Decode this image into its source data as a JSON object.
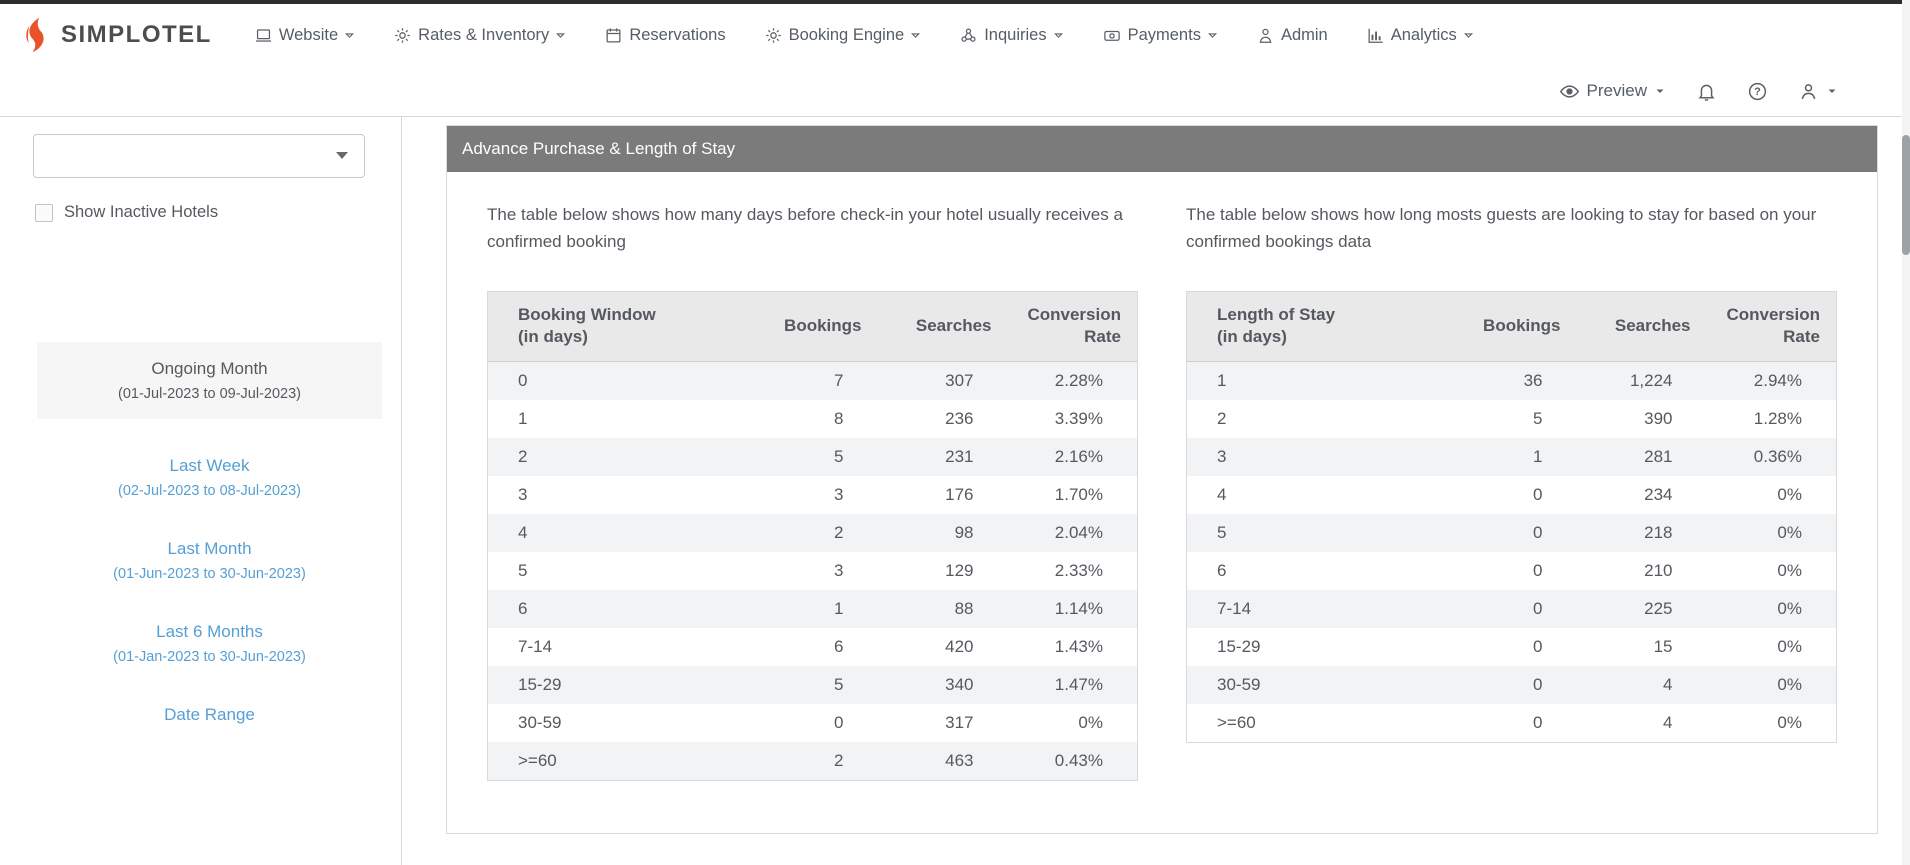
{
  "colors": {
    "brand_orange": "#e8532c",
    "link_blue": "#569fd4",
    "panel_header_gray": "#7b7b7b",
    "table_header_bg": "#e9e9e9",
    "row_stripe": "#f2f3f4",
    "text_gray": "#55595f"
  },
  "topnav": {
    "brand": "SIMPLOTEL",
    "items": [
      {
        "label": "Website",
        "icon": "laptop-icon",
        "dropdown": true
      },
      {
        "label": "Rates & Inventory",
        "icon": "gear-icon",
        "dropdown": true
      },
      {
        "label": "Reservations",
        "icon": "calendar-icon",
        "dropdown": false
      },
      {
        "label": "Booking Engine",
        "icon": "gear-icon",
        "dropdown": true
      },
      {
        "label": "Inquiries",
        "icon": "network-icon",
        "dropdown": true
      },
      {
        "label": "Payments",
        "icon": "payment-icon",
        "dropdown": true
      },
      {
        "label": "Admin",
        "icon": "person-icon",
        "dropdown": false
      },
      {
        "label": "Analytics",
        "icon": "bar-chart-icon",
        "dropdown": true
      }
    ]
  },
  "toolbar": {
    "preview_label": "Preview"
  },
  "sidebar": {
    "hotel_select_value": "",
    "show_inactive_label": "Show Inactive Hotels",
    "date_options": [
      {
        "label": "Ongoing Month",
        "range": "(01-Jul-2023 to 09-Jul-2023)",
        "selected": true
      },
      {
        "label": "Last Week",
        "range": "(02-Jul-2023 to 08-Jul-2023)",
        "selected": false
      },
      {
        "label": "Last Month",
        "range": "(01-Jun-2023 to 30-Jun-2023)",
        "selected": false
      },
      {
        "label": "Last 6 Months",
        "range": "(01-Jan-2023 to 30-Jun-2023)",
        "selected": false
      },
      {
        "label": "Date Range",
        "range": "",
        "selected": false
      }
    ]
  },
  "panel": {
    "title": "Advance Purchase & Length of Stay",
    "left": {
      "description": "The table below shows how many days before check-in your hotel usually receives a confirmed booking",
      "table": {
        "headers": [
          "Booking Window\n(in days)",
          "Bookings",
          "Searches",
          "Conversion\nRate"
        ],
        "rows": [
          [
            "0",
            "7",
            "307",
            "2.28%"
          ],
          [
            "1",
            "8",
            "236",
            "3.39%"
          ],
          [
            "2",
            "5",
            "231",
            "2.16%"
          ],
          [
            "3",
            "3",
            "176",
            "1.70%"
          ],
          [
            "4",
            "2",
            "98",
            "2.04%"
          ],
          [
            "5",
            "3",
            "129",
            "2.33%"
          ],
          [
            "6",
            "1",
            "88",
            "1.14%"
          ],
          [
            "7-14",
            "6",
            "420",
            "1.43%"
          ],
          [
            "15-29",
            "5",
            "340",
            "1.47%"
          ],
          [
            "30-59",
            "0",
            "317",
            "0%"
          ],
          [
            ">=60",
            "2",
            "463",
            "0.43%"
          ]
        ]
      }
    },
    "right": {
      "description": "The table below shows how long mosts guests are looking to stay for based on your confirmed bookings data",
      "table": {
        "headers": [
          "Length of Stay\n(in days)",
          "Bookings",
          "Searches",
          "Conversion\nRate"
        ],
        "rows": [
          [
            "1",
            "36",
            "1,224",
            "2.94%"
          ],
          [
            "2",
            "5",
            "390",
            "1.28%"
          ],
          [
            "3",
            "1",
            "281",
            "0.36%"
          ],
          [
            "4",
            "0",
            "234",
            "0%"
          ],
          [
            "5",
            "0",
            "218",
            "0%"
          ],
          [
            "6",
            "0",
            "210",
            "0%"
          ],
          [
            "7-14",
            "0",
            "225",
            "0%"
          ],
          [
            "15-29",
            "0",
            "15",
            "0%"
          ],
          [
            "30-59",
            "0",
            "4",
            "0%"
          ],
          [
            ">=60",
            "0",
            "4",
            "0%"
          ]
        ]
      }
    }
  }
}
